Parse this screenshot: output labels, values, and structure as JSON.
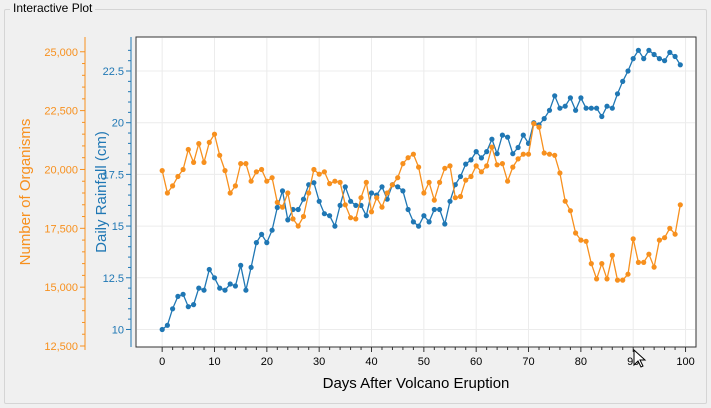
{
  "window": {
    "group_title": "Interactive Plot"
  },
  "colors": {
    "rainfall": "#1f77b4",
    "organisms": "#f7901e",
    "grid": "#ececec",
    "axis": "#333333"
  },
  "chart_data": {
    "type": "line",
    "title": "",
    "xlabel": "Days After Volcano Eruption",
    "xlim": [
      -5,
      102
    ],
    "xticks": [
      0,
      10,
      20,
      30,
      40,
      50,
      60,
      70,
      80,
      90,
      100
    ],
    "x_tick_labels": [
      "0",
      "10",
      "20",
      "30",
      "40",
      "50",
      "60",
      "70",
      "80",
      "90",
      "100"
    ],
    "y_axes": [
      {
        "id": "rainfall",
        "label": "Daily Rainfall (cm)",
        "lim": [
          9.2,
          24.0
        ],
        "ticks": [
          10,
          12.5,
          15,
          17.5,
          20,
          22.5
        ],
        "tick_labels": [
          "10",
          "12.5",
          "15",
          "17.5",
          "20",
          "22.5"
        ]
      },
      {
        "id": "organisms",
        "label": "Number of Organisms",
        "lim": [
          12500,
          25500
        ],
        "ticks": [
          12500,
          15000,
          17500,
          20000,
          22500,
          25000
        ],
        "tick_labels": [
          "12,500",
          "15,000",
          "17,500",
          "20,000",
          "22,500",
          "25,000"
        ]
      }
    ],
    "series": [
      {
        "name": "Daily Rainfall (cm)",
        "axis": "rainfall",
        "x": [
          0,
          1,
          2,
          3,
          4,
          5,
          6,
          7,
          8,
          9,
          10,
          11,
          12,
          13,
          14,
          15,
          16,
          17,
          18,
          19,
          20,
          21,
          22,
          23,
          24,
          25,
          26,
          27,
          28,
          29,
          30,
          31,
          32,
          33,
          34,
          35,
          36,
          37,
          38,
          39,
          40,
          41,
          42,
          43,
          44,
          45,
          46,
          47,
          48,
          49,
          50,
          51,
          52,
          53,
          54,
          55,
          56,
          57,
          58,
          59,
          60,
          61,
          62,
          63,
          64,
          65,
          66,
          67,
          68,
          69,
          70,
          71,
          72,
          73,
          74,
          75,
          76,
          77,
          78,
          79,
          80,
          81,
          82,
          83,
          84,
          85,
          86,
          87,
          88,
          89,
          90,
          91,
          92,
          93,
          94,
          95,
          96,
          97,
          98,
          99
        ],
        "values": [
          10.0,
          10.2,
          11.0,
          11.6,
          11.7,
          11.1,
          11.2,
          12.0,
          11.9,
          12.9,
          12.5,
          12.0,
          11.9,
          12.2,
          12.1,
          13.1,
          11.9,
          13.0,
          14.2,
          14.6,
          14.2,
          14.8,
          15.9,
          16.7,
          15.3,
          15.8,
          15.8,
          16.3,
          17.0,
          17.1,
          16.2,
          15.6,
          15.5,
          15.0,
          16.0,
          16.9,
          16.2,
          16.0,
          16.0,
          15.5,
          16.6,
          16.5,
          16.9,
          16.3,
          17.0,
          16.9,
          16.7,
          15.8,
          15.2,
          15.0,
          15.5,
          15.2,
          15.8,
          15.8,
          15.1,
          16.2,
          17.0,
          17.4,
          18.0,
          18.2,
          18.6,
          18.3,
          18.6,
          19.2,
          18.5,
          19.4,
          19.3,
          18.5,
          18.8,
          19.4,
          19.0,
          20.0,
          19.9,
          20.2,
          20.6,
          21.3,
          20.7,
          20.8,
          21.2,
          20.6,
          21.2,
          20.7,
          20.7,
          20.7,
          20.3,
          20.8,
          20.7,
          21.4,
          22.0,
          22.5,
          23.1,
          23.5,
          23.1,
          23.5,
          23.3,
          23.1,
          23.0,
          23.4,
          23.2,
          22.8
        ]
      },
      {
        "name": "Number of Organisms",
        "axis": "organisms",
        "x": [
          0,
          1,
          2,
          3,
          4,
          5,
          6,
          7,
          8,
          9,
          10,
          11,
          12,
          13,
          14,
          15,
          16,
          17,
          18,
          19,
          20,
          21,
          22,
          23,
          24,
          25,
          26,
          27,
          28,
          29,
          30,
          31,
          32,
          33,
          34,
          35,
          36,
          37,
          38,
          39,
          40,
          41,
          42,
          43,
          44,
          45,
          46,
          47,
          48,
          49,
          50,
          51,
          52,
          53,
          54,
          55,
          56,
          57,
          58,
          59,
          60,
          61,
          62,
          63,
          64,
          65,
          66,
          67,
          68,
          69,
          70,
          71,
          72,
          73,
          74,
          75,
          76,
          77,
          78,
          79,
          80,
          81,
          82,
          83,
          84,
          85,
          86,
          87,
          88,
          89,
          90,
          91,
          92,
          93,
          94,
          95,
          96,
          97,
          98,
          99
        ],
        "values": [
          19950,
          19000,
          19300,
          19700,
          20000,
          20850,
          20300,
          21100,
          20300,
          21150,
          21500,
          20600,
          19950,
          19000,
          19300,
          20250,
          20250,
          19500,
          19900,
          20000,
          19500,
          19650,
          18600,
          18400,
          19000,
          17900,
          17600,
          18000,
          19000,
          20000,
          19800,
          19900,
          19400,
          19500,
          19450,
          18500,
          17950,
          17900,
          18800,
          19450,
          18200,
          18800,
          18400,
          19000,
          19350,
          19650,
          20250,
          20500,
          20650,
          20100,
          19000,
          19450,
          18700,
          19450,
          20050,
          20150,
          18800,
          18850,
          19550,
          19700,
          20150,
          19900,
          20150,
          20950,
          20200,
          20250,
          19500,
          20100,
          20450,
          20650,
          20650,
          21950,
          21800,
          20700,
          20650,
          20600,
          19850,
          18650,
          18250,
          17300,
          17000,
          16950,
          16000,
          15350,
          16000,
          15350,
          16350,
          15300,
          15300,
          15550,
          17050,
          16050,
          16050,
          16400,
          15850,
          17000,
          17100,
          17500,
          17250,
          18500
        ]
      }
    ]
  }
}
